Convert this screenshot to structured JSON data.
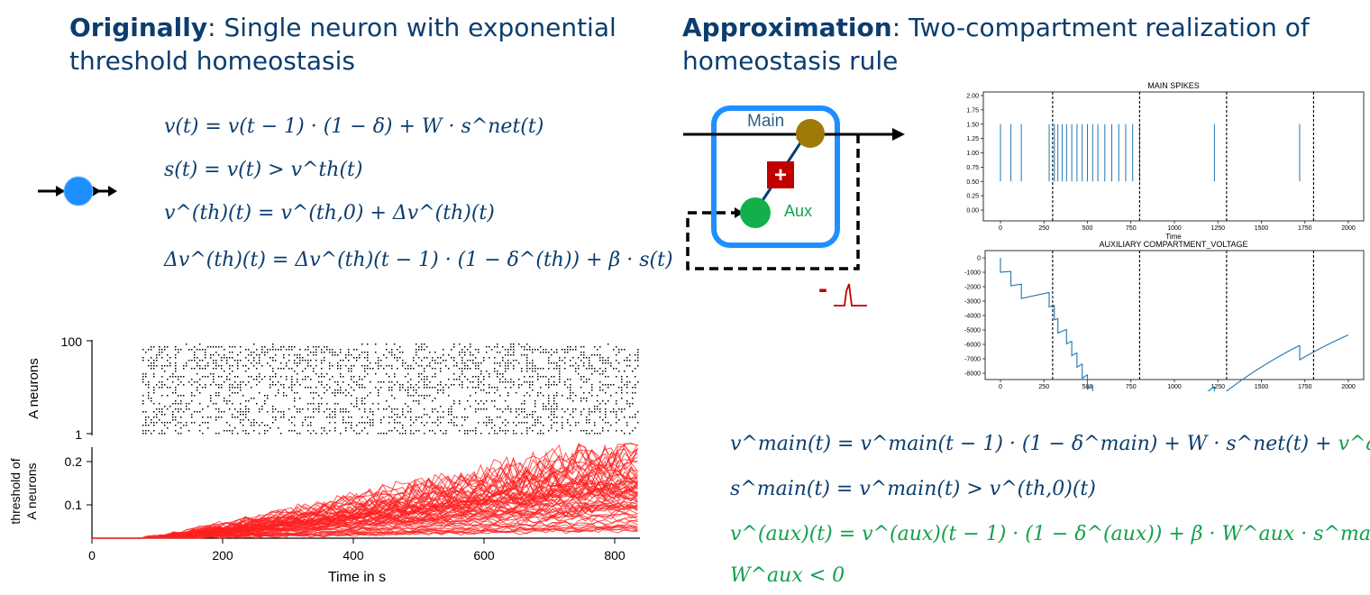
{
  "left": {
    "title_bold": "Originally",
    "title_line1": ": Single neuron with exponential",
    "title_line2": "threshold homeostasis",
    "equations": [
      "v(t) = v(t − 1) · (1 − δ) + W · s^net(t)",
      "s(t) = v(t) > v^th(t)",
      "v^(th)(t) = v^(th,0) + Δv^(th)(t)",
      "Δv^(th)(t) = Δv^(th)(t − 1) · (1 − δ^(th)) + β · s(t)"
    ],
    "raster": {
      "ylabel": "A neurons",
      "yticks": [
        "100",
        "1"
      ]
    },
    "threshold": {
      "ylabel_line1": "threshold of",
      "ylabel_line2": "A neurons",
      "yticks": [
        "0.2",
        "0.1"
      ],
      "xticks": [
        "0",
        "200",
        "400",
        "600",
        "800"
      ],
      "xlabel": "Time in s"
    }
  },
  "right": {
    "title_bold": "Approximation",
    "title_line1": ": Two-compartment realization of",
    "title_line2": "homeostasis rule",
    "diagram": {
      "main_label": "Main",
      "aux_label": "Aux",
      "plus_sign": "+",
      "minus_sign": "-"
    },
    "eq1": [
      "v^main(t) = v^main(t − 1) · (1 − δ^main) + W · s^net(t) + ",
      "v^aux(t)"
    ],
    "equations_blue": [
      "s^main(t) = v^main(t) > v^(th,0)(t)"
    ],
    "equations_green": [
      "v^(aux)(t) = v^(aux)(t − 1) · (1 − δ^(aux)) + β · W^aux · s^main(t)",
      "W^aux < 0"
    ]
  },
  "chart_data": [
    {
      "type": "scatter",
      "title": "MAIN SPIKES",
      "xlabel": "Time",
      "xlim": [
        0,
        2000
      ],
      "ylim": [
        0,
        2
      ],
      "xticks": [
        "0",
        "250",
        "500",
        "750",
        "1000",
        "1250",
        "1500",
        "1750",
        "2000"
      ],
      "yticks": [
        "2.00",
        "1.75",
        "1.50",
        "1.25",
        "1.00",
        "0.75",
        "0.50",
        "0.25",
        "0.00"
      ],
      "spike_times": [
        0,
        60,
        120,
        280,
        310,
        330,
        355,
        380,
        410,
        440,
        470,
        500,
        530,
        560,
        600,
        640,
        680,
        720,
        760,
        800,
        1230,
        1720
      ],
      "vlines": [
        300,
        800,
        1300,
        1800
      ]
    },
    {
      "type": "line",
      "title": "AUXILIARY COMPARTMENT_VOLTAGE",
      "xlim": [
        0,
        2000
      ],
      "ylim": [
        -8000,
        0
      ],
      "xticks": [
        "0",
        "250",
        "500",
        "750",
        "1000",
        "1250",
        "1500",
        "1750",
        "2000"
      ],
      "yticks": [
        "0",
        "-1000",
        "-2000",
        "-3000",
        "-4000",
        "-5000",
        "-6000",
        "-7000",
        "-8000"
      ],
      "vlines": [
        300,
        800,
        1300,
        1800
      ]
    },
    {
      "type": "line",
      "ylabel": "threshold of A neurons",
      "xlabel": "Time in s",
      "xlim": [
        0,
        840
      ],
      "ylim": [
        0.02,
        0.25
      ]
    }
  ]
}
